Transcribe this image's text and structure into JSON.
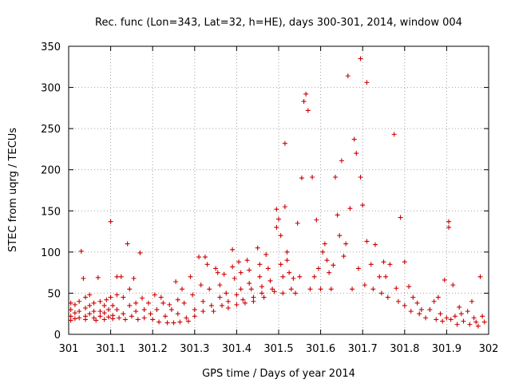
{
  "chart_data": {
    "type": "scatter",
    "title": "Rec. func (Lon=343, Lat=32, h=HE), days 300-301, 2014, window 004",
    "xlabel": "GPS time / Days of year 2014",
    "ylabel": "STEC from uqrg / TECUs",
    "xlim": [
      301.0,
      302.0
    ],
    "ylim": [
      0,
      350
    ],
    "grid": true,
    "marker": "+",
    "marker_color": "#cc0000",
    "x_ticks": [
      301.0,
      301.1,
      301.2,
      301.3,
      301.4,
      301.5,
      301.6,
      301.7,
      301.8,
      301.9,
      302.0
    ],
    "x_tick_labels": [
      "301",
      "301.1",
      "301.2",
      "301.3",
      "301.4",
      "301.5",
      "301.6",
      "301.7",
      "301.8",
      "301.9",
      "302"
    ],
    "y_ticks": [
      0,
      50,
      100,
      150,
      200,
      250,
      300,
      350
    ],
    "y_tick_labels": [
      "0",
      "50",
      "100",
      "150",
      "200",
      "250",
      "300",
      "350"
    ],
    "series": [
      {
        "name": "STEC",
        "points": [
          [
            301.005,
            38
          ],
          [
            301.005,
            30
          ],
          [
            301.005,
            22
          ],
          [
            301.005,
            17
          ],
          [
            301.015,
            36
          ],
          [
            301.015,
            26
          ],
          [
            301.015,
            19
          ],
          [
            301.025,
            40
          ],
          [
            301.025,
            28
          ],
          [
            301.025,
            20
          ],
          [
            301.03,
            101
          ],
          [
            301.035,
            68
          ],
          [
            301.04,
            45
          ],
          [
            301.04,
            32
          ],
          [
            301.04,
            22
          ],
          [
            301.04,
            18
          ],
          [
            301.05,
            48
          ],
          [
            301.05,
            35
          ],
          [
            301.05,
            25
          ],
          [
            301.06,
            38
          ],
          [
            301.06,
            28
          ],
          [
            301.06,
            20
          ],
          [
            301.065,
            17
          ],
          [
            301.07,
            69
          ],
          [
            301.075,
            40
          ],
          [
            301.075,
            28
          ],
          [
            301.075,
            22
          ],
          [
            301.085,
            35
          ],
          [
            301.085,
            26
          ],
          [
            301.085,
            18
          ],
          [
            301.09,
            42
          ],
          [
            301.095,
            30
          ],
          [
            301.095,
            21
          ],
          [
            301.1,
            137
          ],
          [
            301.1,
            45
          ],
          [
            301.105,
            35
          ],
          [
            301.105,
            23
          ],
          [
            301.105,
            19
          ],
          [
            301.115,
            70
          ],
          [
            301.115,
            48
          ],
          [
            301.115,
            30
          ],
          [
            301.12,
            20
          ],
          [
            301.125,
            70
          ],
          [
            301.13,
            45
          ],
          [
            301.13,
            25
          ],
          [
            301.135,
            18
          ],
          [
            301.14,
            110
          ],
          [
            301.145,
            55
          ],
          [
            301.145,
            35
          ],
          [
            301.15,
            22
          ],
          [
            301.155,
            68
          ],
          [
            301.16,
            38
          ],
          [
            301.16,
            28
          ],
          [
            301.165,
            18
          ],
          [
            301.17,
            99
          ],
          [
            301.175,
            44
          ],
          [
            301.18,
            30
          ],
          [
            301.18,
            20
          ],
          [
            301.19,
            38
          ],
          [
            301.195,
            25
          ],
          [
            301.2,
            18
          ],
          [
            301.205,
            48
          ],
          [
            301.21,
            30
          ],
          [
            301.215,
            15
          ],
          [
            301.22,
            45
          ],
          [
            301.225,
            38
          ],
          [
            301.23,
            22
          ],
          [
            301.235,
            14
          ],
          [
            301.24,
            36
          ],
          [
            301.245,
            30
          ],
          [
            301.25,
            14
          ],
          [
            301.255,
            64
          ],
          [
            301.26,
            42
          ],
          [
            301.26,
            25
          ],
          [
            301.265,
            15
          ],
          [
            301.27,
            55
          ],
          [
            301.275,
            38
          ],
          [
            301.28,
            20
          ],
          [
            301.285,
            16
          ],
          [
            301.29,
            70
          ],
          [
            301.295,
            48
          ],
          [
            301.3,
            30
          ],
          [
            301.3,
            22
          ],
          [
            301.31,
            94
          ],
          [
            301.315,
            60
          ],
          [
            301.32,
            40
          ],
          [
            301.32,
            28
          ],
          [
            301.325,
            94
          ],
          [
            301.33,
            85
          ],
          [
            301.335,
            55
          ],
          [
            301.34,
            35
          ],
          [
            301.345,
            28
          ],
          [
            301.35,
            80
          ],
          [
            301.355,
            75
          ],
          [
            301.36,
            60
          ],
          [
            301.36,
            45
          ],
          [
            301.365,
            35
          ],
          [
            301.37,
            73
          ],
          [
            301.375,
            50
          ],
          [
            301.38,
            40
          ],
          [
            301.38,
            32
          ],
          [
            301.39,
            103
          ],
          [
            301.39,
            82
          ],
          [
            301.395,
            68
          ],
          [
            301.4,
            48
          ],
          [
            301.4,
            36
          ],
          [
            301.405,
            88
          ],
          [
            301.41,
            75
          ],
          [
            301.41,
            55
          ],
          [
            301.415,
            42
          ],
          [
            301.42,
            38
          ],
          [
            301.425,
            90
          ],
          [
            301.43,
            78
          ],
          [
            301.43,
            62
          ],
          [
            301.435,
            55
          ],
          [
            301.44,
            45
          ],
          [
            301.44,
            40
          ],
          [
            301.45,
            105
          ],
          [
            301.455,
            85
          ],
          [
            301.455,
            70
          ],
          [
            301.46,
            58
          ],
          [
            301.46,
            50
          ],
          [
            301.465,
            45
          ],
          [
            301.47,
            97
          ],
          [
            301.475,
            80
          ],
          [
            301.48,
            65
          ],
          [
            301.485,
            55
          ],
          [
            301.49,
            52
          ],
          [
            301.495,
            152
          ],
          [
            301.495,
            130
          ],
          [
            301.5,
            140
          ],
          [
            301.505,
            120
          ],
          [
            301.505,
            85
          ],
          [
            301.51,
            70
          ],
          [
            301.51,
            50
          ],
          [
            301.515,
            155
          ],
          [
            301.515,
            232
          ],
          [
            301.52,
            100
          ],
          [
            301.52,
            90
          ],
          [
            301.525,
            75
          ],
          [
            301.53,
            55
          ],
          [
            301.535,
            68
          ],
          [
            301.54,
            50
          ],
          [
            301.545,
            135
          ],
          [
            301.55,
            70
          ],
          [
            301.555,
            190
          ],
          [
            301.56,
            283
          ],
          [
            301.565,
            292
          ],
          [
            301.57,
            272
          ],
          [
            301.575,
            55
          ],
          [
            301.58,
            191
          ],
          [
            301.585,
            70
          ],
          [
            301.59,
            139
          ],
          [
            301.595,
            80
          ],
          [
            301.6,
            55
          ],
          [
            301.605,
            100
          ],
          [
            301.61,
            110
          ],
          [
            301.615,
            90
          ],
          [
            301.62,
            75
          ],
          [
            301.625,
            55
          ],
          [
            301.63,
            84
          ],
          [
            301.635,
            191
          ],
          [
            301.64,
            145
          ],
          [
            301.645,
            120
          ],
          [
            301.65,
            211
          ],
          [
            301.655,
            95
          ],
          [
            301.66,
            110
          ],
          [
            301.665,
            314
          ],
          [
            301.67,
            153
          ],
          [
            301.675,
            55
          ],
          [
            301.68,
            237
          ],
          [
            301.685,
            220
          ],
          [
            301.69,
            80
          ],
          [
            301.695,
            191
          ],
          [
            301.695,
            335
          ],
          [
            301.7,
            157
          ],
          [
            301.705,
            60
          ],
          [
            301.71,
            306
          ],
          [
            301.71,
            113
          ],
          [
            301.72,
            85
          ],
          [
            301.725,
            55
          ],
          [
            301.73,
            109
          ],
          [
            301.74,
            70
          ],
          [
            301.745,
            50
          ],
          [
            301.75,
            88
          ],
          [
            301.755,
            70
          ],
          [
            301.76,
            45
          ],
          [
            301.765,
            85
          ],
          [
            301.775,
            243
          ],
          [
            301.78,
            56
          ],
          [
            301.785,
            40
          ],
          [
            301.79,
            142
          ],
          [
            301.8,
            88
          ],
          [
            301.8,
            35
          ],
          [
            301.81,
            58
          ],
          [
            301.815,
            28
          ],
          [
            301.82,
            45
          ],
          [
            301.83,
            38
          ],
          [
            301.835,
            25
          ],
          [
            301.84,
            30
          ],
          [
            301.85,
            20
          ],
          [
            301.86,
            30
          ],
          [
            301.87,
            40
          ],
          [
            301.875,
            18
          ],
          [
            301.88,
            45
          ],
          [
            301.885,
            25
          ],
          [
            301.89,
            16
          ],
          [
            301.895,
            66
          ],
          [
            301.9,
            20
          ],
          [
            301.905,
            137
          ],
          [
            301.905,
            130
          ],
          [
            301.91,
            18
          ],
          [
            301.915,
            60
          ],
          [
            301.92,
            22
          ],
          [
            301.925,
            12
          ],
          [
            301.93,
            33
          ],
          [
            301.935,
            25
          ],
          [
            301.94,
            16
          ],
          [
            301.95,
            28
          ],
          [
            301.955,
            12
          ],
          [
            301.96,
            40
          ],
          [
            301.965,
            20
          ],
          [
            301.97,
            15
          ],
          [
            301.975,
            10
          ],
          [
            301.98,
            70
          ],
          [
            301.985,
            22
          ],
          [
            301.99,
            15
          ]
        ]
      }
    ]
  }
}
